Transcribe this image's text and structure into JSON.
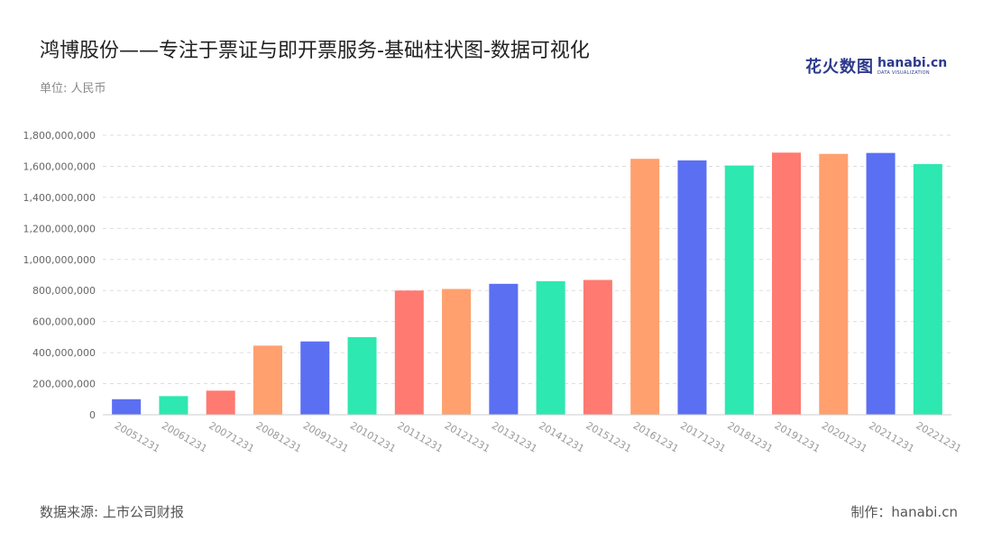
{
  "header": {
    "title": "鸿博股份——专注于票证与即开票服务-基础柱状图-数据可视化",
    "unit": "单位: 人民币"
  },
  "logo": {
    "cn": "花火数图",
    "en": "hanabi.cn",
    "sub": "DATA VISUALIZATION"
  },
  "footer": {
    "source": "数据来源: 上市公司财报",
    "maker": "制作：hanabi.cn"
  },
  "chart_data": {
    "type": "bar",
    "categories": [
      "20051231",
      "20061231",
      "20071231",
      "20081231",
      "20091231",
      "20101231",
      "20111231",
      "20121231",
      "20131231",
      "20141231",
      "20151231",
      "20161231",
      "20171231",
      "20181231",
      "20191231",
      "20201231",
      "20211231",
      "20221231"
    ],
    "values": [
      100000000,
      120000000,
      155000000,
      445000000,
      472000000,
      500000000,
      800000000,
      810000000,
      843000000,
      860000000,
      868000000,
      1648000000,
      1638000000,
      1605000000,
      1688000000,
      1680000000,
      1686000000,
      1614000000
    ],
    "bar_colors": [
      "#5b6ff2",
      "#2de8b0",
      "#ff7a70",
      "#ffa06e",
      "#5b6ff2",
      "#2de8b0",
      "#ff7a70",
      "#ffa06e",
      "#5b6ff2",
      "#2de8b0",
      "#ff7a70",
      "#ffa06e",
      "#5b6ff2",
      "#2de8b0",
      "#ff7a70",
      "#ffa06e",
      "#5b6ff2",
      "#2de8b0"
    ],
    "ylim": [
      0,
      1800000000
    ],
    "yticks": [
      0,
      200000000,
      400000000,
      600000000,
      800000000,
      1000000000,
      1200000000,
      1400000000,
      1600000000,
      1800000000
    ],
    "ytick_labels": [
      "0",
      "200,000,000",
      "400,000,000",
      "600,000,000",
      "800,000,000",
      "1,000,000,000",
      "1,200,000,000",
      "1,400,000,000",
      "1,600,000,000",
      "1,800,000,000"
    ],
    "grid": true,
    "xlabel": "",
    "ylabel": ""
  }
}
